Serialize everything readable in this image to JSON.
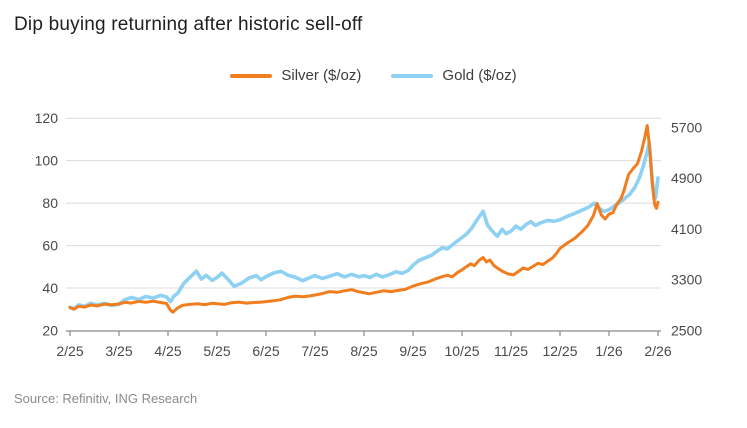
{
  "header": {
    "title": "Dip buying returning after historic sell-off"
  },
  "footer": {
    "source": "Source: Refinitiv, ING Research"
  },
  "chart_data": {
    "type": "line",
    "title": "Dip buying returning after historic sell-off",
    "x_tick_labels": [
      "2/25",
      "3/25",
      "4/25",
      "5/25",
      "6/25",
      "7/25",
      "8/25",
      "9/25",
      "10/25",
      "11/25",
      "12/25",
      "1/26",
      "2/26"
    ],
    "left_axis": {
      "ticks": [
        20,
        40,
        60,
        80,
        100,
        120
      ],
      "range": [
        20,
        120
      ]
    },
    "right_axis": {
      "ticks": [
        2500,
        3300,
        4100,
        4900,
        5700
      ],
      "range": [
        2500,
        5700
      ]
    },
    "grid": "horizontal-left-axis",
    "legend_position": "top-center",
    "series": [
      {
        "name": "Silver ($/oz)",
        "axis": "left",
        "color": "#f07d1e",
        "width": 3,
        "points": [
          [
            0,
            30.8
          ],
          [
            0.08,
            30.1
          ],
          [
            0.18,
            31.4
          ],
          [
            0.3,
            31.0
          ],
          [
            0.42,
            32.0
          ],
          [
            0.55,
            31.6
          ],
          [
            0.7,
            32.4
          ],
          [
            0.85,
            32.1
          ],
          [
            1,
            32.5
          ],
          [
            1.12,
            33.3
          ],
          [
            1.25,
            32.9
          ],
          [
            1.4,
            33.7
          ],
          [
            1.55,
            33.3
          ],
          [
            1.7,
            33.8
          ],
          [
            1.85,
            33.2
          ],
          [
            1.97,
            32.7
          ],
          [
            2.05,
            29.6
          ],
          [
            2.1,
            28.6
          ],
          [
            2.18,
            30.3
          ],
          [
            2.3,
            31.9
          ],
          [
            2.45,
            32.3
          ],
          [
            2.6,
            32.6
          ],
          [
            2.75,
            32.2
          ],
          [
            2.9,
            32.8
          ],
          [
            3,
            32.6
          ],
          [
            3.15,
            32.3
          ],
          [
            3.3,
            33.1
          ],
          [
            3.45,
            33.4
          ],
          [
            3.6,
            32.9
          ],
          [
            3.75,
            33.2
          ],
          [
            3.9,
            33.4
          ],
          [
            4,
            33.6
          ],
          [
            4.15,
            34.0
          ],
          [
            4.3,
            34.5
          ],
          [
            4.45,
            35.6
          ],
          [
            4.6,
            36.2
          ],
          [
            4.75,
            35.9
          ],
          [
            4.9,
            36.3
          ],
          [
            5,
            36.7
          ],
          [
            5.15,
            37.4
          ],
          [
            5.3,
            38.3
          ],
          [
            5.45,
            38.0
          ],
          [
            5.6,
            38.7
          ],
          [
            5.75,
            39.2
          ],
          [
            5.9,
            38.2
          ],
          [
            6,
            37.8
          ],
          [
            6.1,
            37.3
          ],
          [
            6.25,
            38.0
          ],
          [
            6.4,
            38.7
          ],
          [
            6.55,
            38.3
          ],
          [
            6.7,
            38.9
          ],
          [
            6.85,
            39.4
          ],
          [
            7,
            40.9
          ],
          [
            7.15,
            42.0
          ],
          [
            7.3,
            42.8
          ],
          [
            7.45,
            44.2
          ],
          [
            7.6,
            45.4
          ],
          [
            7.7,
            46.0
          ],
          [
            7.8,
            45.3
          ],
          [
            7.9,
            47.2
          ],
          [
            8,
            48.6
          ],
          [
            8.1,
            50.2
          ],
          [
            8.18,
            51.4
          ],
          [
            8.25,
            50.5
          ],
          [
            8.35,
            53.0
          ],
          [
            8.43,
            54.4
          ],
          [
            8.5,
            52.3
          ],
          [
            8.57,
            53.2
          ],
          [
            8.65,
            50.6
          ],
          [
            8.75,
            48.9
          ],
          [
            8.85,
            47.6
          ],
          [
            8.95,
            46.6
          ],
          [
            9.05,
            46.2
          ],
          [
            9.15,
            47.8
          ],
          [
            9.25,
            49.5
          ],
          [
            9.35,
            48.8
          ],
          [
            9.45,
            50.2
          ],
          [
            9.55,
            51.6
          ],
          [
            9.65,
            51.1
          ],
          [
            9.75,
            52.7
          ],
          [
            9.85,
            54.2
          ],
          [
            9.93,
            56.4
          ],
          [
            10,
            58.7
          ],
          [
            10.15,
            61.2
          ],
          [
            10.3,
            63.4
          ],
          [
            10.45,
            66.5
          ],
          [
            10.57,
            69.5
          ],
          [
            10.68,
            74.0
          ],
          [
            10.76,
            79.8
          ],
          [
            10.84,
            74.5
          ],
          [
            10.92,
            72.5
          ],
          [
            11,
            74.8
          ],
          [
            11.08,
            75.5
          ],
          [
            11.16,
            79.5
          ],
          [
            11.24,
            82.0
          ],
          [
            11.3,
            85.5
          ],
          [
            11.4,
            93.5
          ],
          [
            11.5,
            96.5
          ],
          [
            11.58,
            98.5
          ],
          [
            11.66,
            104
          ],
          [
            11.73,
            111
          ],
          [
            11.78,
            116.5
          ],
          [
            11.83,
            106
          ],
          [
            11.88,
            90
          ],
          [
            11.93,
            79.5
          ],
          [
            11.97,
            77.5
          ],
          [
            12,
            80.5
          ]
        ]
      },
      {
        "name": "Gold ($/oz)",
        "axis": "right",
        "color": "#8ed1f3",
        "width": 3.6,
        "points": [
          [
            0,
            2865
          ],
          [
            0.08,
            2840
          ],
          [
            0.18,
            2905
          ],
          [
            0.3,
            2880
          ],
          [
            0.42,
            2930
          ],
          [
            0.55,
            2900
          ],
          [
            0.7,
            2930
          ],
          [
            0.85,
            2895
          ],
          [
            1,
            2915
          ],
          [
            1.12,
            2985
          ],
          [
            1.25,
            3020
          ],
          [
            1.4,
            2990
          ],
          [
            1.55,
            3035
          ],
          [
            1.7,
            3010
          ],
          [
            1.85,
            3055
          ],
          [
            1.97,
            3030
          ],
          [
            2.05,
            2955
          ],
          [
            2.12,
            3040
          ],
          [
            2.2,
            3090
          ],
          [
            2.32,
            3240
          ],
          [
            2.45,
            3340
          ],
          [
            2.58,
            3435
          ],
          [
            2.68,
            3310
          ],
          [
            2.78,
            3370
          ],
          [
            2.9,
            3290
          ],
          [
            3,
            3335
          ],
          [
            3.1,
            3405
          ],
          [
            3.22,
            3310
          ],
          [
            3.35,
            3195
          ],
          [
            3.5,
            3245
          ],
          [
            3.65,
            3325
          ],
          [
            3.8,
            3365
          ],
          [
            3.9,
            3300
          ],
          [
            4,
            3350
          ],
          [
            4.15,
            3405
          ],
          [
            4.3,
            3435
          ],
          [
            4.45,
            3370
          ],
          [
            4.6,
            3340
          ],
          [
            4.75,
            3285
          ],
          [
            4.9,
            3335
          ],
          [
            5,
            3365
          ],
          [
            5.15,
            3320
          ],
          [
            5.3,
            3355
          ],
          [
            5.45,
            3395
          ],
          [
            5.6,
            3345
          ],
          [
            5.75,
            3385
          ],
          [
            5.9,
            3345
          ],
          [
            6,
            3365
          ],
          [
            6.12,
            3335
          ],
          [
            6.25,
            3385
          ],
          [
            6.38,
            3345
          ],
          [
            6.5,
            3375
          ],
          [
            6.65,
            3425
          ],
          [
            6.78,
            3400
          ],
          [
            6.9,
            3445
          ],
          [
            7,
            3525
          ],
          [
            7.12,
            3605
          ],
          [
            7.25,
            3645
          ],
          [
            7.38,
            3685
          ],
          [
            7.5,
            3755
          ],
          [
            7.6,
            3805
          ],
          [
            7.7,
            3785
          ],
          [
            7.85,
            3875
          ],
          [
            8,
            3965
          ],
          [
            8.1,
            4025
          ],
          [
            8.2,
            4115
          ],
          [
            8.3,
            4235
          ],
          [
            8.43,
            4380
          ],
          [
            8.52,
            4160
          ],
          [
            8.62,
            4065
          ],
          [
            8.72,
            3985
          ],
          [
            8.82,
            4095
          ],
          [
            8.9,
            4025
          ],
          [
            9,
            4065
          ],
          [
            9.1,
            4145
          ],
          [
            9.2,
            4095
          ],
          [
            9.3,
            4165
          ],
          [
            9.4,
            4215
          ],
          [
            9.5,
            4155
          ],
          [
            9.6,
            4195
          ],
          [
            9.75,
            4235
          ],
          [
            9.88,
            4220
          ],
          [
            10,
            4245
          ],
          [
            10.15,
            4300
          ],
          [
            10.3,
            4345
          ],
          [
            10.45,
            4395
          ],
          [
            10.6,
            4450
          ],
          [
            10.7,
            4505
          ],
          [
            10.8,
            4425
          ],
          [
            10.9,
            4375
          ],
          [
            11,
            4405
          ],
          [
            11.1,
            4455
          ],
          [
            11.2,
            4505
          ],
          [
            11.3,
            4565
          ],
          [
            11.42,
            4645
          ],
          [
            11.52,
            4745
          ],
          [
            11.62,
            4905
          ],
          [
            11.7,
            5090
          ],
          [
            11.78,
            5320
          ],
          [
            11.82,
            5460
          ],
          [
            11.87,
            4990
          ],
          [
            11.91,
            4660
          ],
          [
            11.95,
            4590
          ],
          [
            12,
            4905
          ]
        ]
      }
    ]
  }
}
